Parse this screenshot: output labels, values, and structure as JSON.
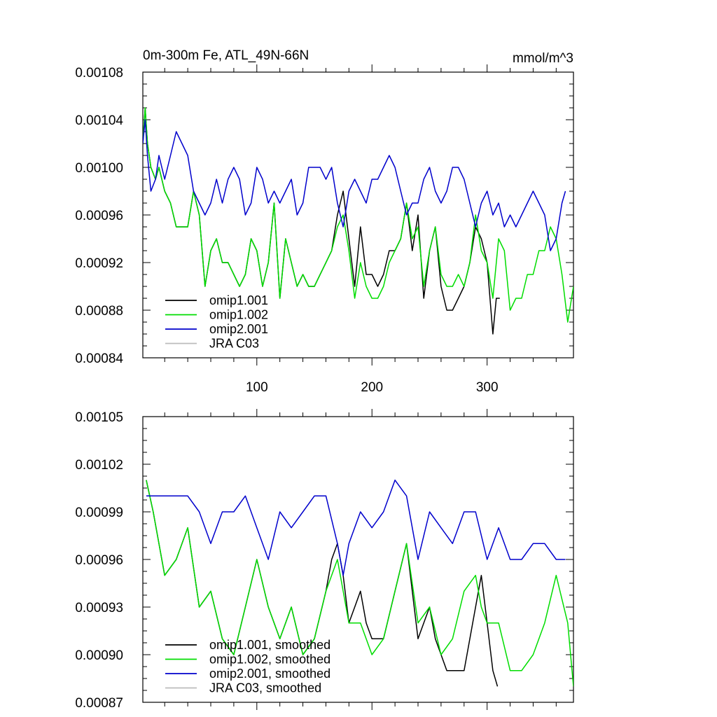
{
  "chart_data": [
    {
      "type": "line",
      "title": "0m-300m Fe, ATL_49N-66N",
      "units": "mmol/m^3",
      "xlabel": "",
      "ylabel": "",
      "xlim": [
        1,
        375
      ],
      "ylim": [
        0.00084,
        0.00108
      ],
      "x_ticks": [
        100,
        200,
        300
      ],
      "x_tick_labels": [
        "100",
        "200",
        "300"
      ],
      "y_ticks": [
        0.00084,
        0.00088,
        0.00092,
        0.00096,
        0.001,
        0.00104,
        0.00108
      ],
      "y_tick_labels": [
        "0.00084",
        "0.00088",
        "0.00092",
        "0.00096",
        "0.00100",
        "0.00104",
        "0.00108"
      ],
      "legend_position": "bottom-left",
      "series": [
        {
          "name": "omip1.001",
          "color": "#000000",
          "x": [
            1,
            3,
            5,
            8,
            12,
            15,
            20,
            25,
            30,
            35,
            40,
            45,
            50,
            55,
            60,
            65,
            70,
            75,
            80,
            85,
            90,
            95,
            100,
            105,
            110,
            115,
            120,
            125,
            130,
            135,
            140,
            145,
            150,
            155,
            160,
            165,
            170,
            175,
            180,
            185,
            190,
            195,
            200,
            205,
            210,
            215,
            220,
            225,
            230,
            235,
            240,
            245,
            250,
            255,
            260,
            265,
            270,
            275,
            280,
            285,
            290,
            295,
            300,
            305,
            308,
            311
          ],
          "y": [
            0.00102,
            0.00105,
            0.00102,
            0.001,
            0.00099,
            0.001,
            0.00098,
            0.00097,
            0.00095,
            0.00095,
            0.00095,
            0.00098,
            0.00096,
            0.0009,
            0.00093,
            0.00094,
            0.00092,
            0.00092,
            0.00091,
            0.0009,
            0.00091,
            0.00094,
            0.00093,
            0.0009,
            0.00092,
            0.00097,
            0.00089,
            0.00094,
            0.00092,
            0.0009,
            0.00091,
            0.0009,
            0.0009,
            0.00091,
            0.00092,
            0.00093,
            0.00096,
            0.00098,
            0.00094,
            0.0009,
            0.00095,
            0.00091,
            0.00091,
            0.0009,
            0.00091,
            0.00093,
            0.00093,
            0.00094,
            0.00097,
            0.00093,
            0.00096,
            0.00089,
            0.00093,
            0.00095,
            0.0009,
            0.00088,
            0.00088,
            0.00089,
            0.0009,
            0.00092,
            0.00095,
            0.00094,
            0.00092,
            0.00086,
            0.00089,
            0.00089
          ]
        },
        {
          "name": "omip1.002",
          "color": "#00dd00",
          "x": [
            1,
            3,
            5,
            8,
            12,
            15,
            20,
            25,
            30,
            35,
            40,
            45,
            50,
            55,
            60,
            65,
            70,
            75,
            80,
            85,
            90,
            95,
            100,
            105,
            110,
            115,
            120,
            125,
            130,
            135,
            140,
            145,
            150,
            155,
            160,
            165,
            170,
            175,
            180,
            185,
            190,
            195,
            200,
            205,
            210,
            215,
            220,
            225,
            230,
            235,
            240,
            245,
            250,
            255,
            260,
            265,
            270,
            275,
            280,
            285,
            290,
            295,
            300,
            305,
            310,
            315,
            320,
            325,
            330,
            335,
            340,
            345,
            350,
            355,
            360,
            365,
            370,
            375
          ],
          "y": [
            0.00102,
            0.00105,
            0.00102,
            0.001,
            0.00099,
            0.001,
            0.00098,
            0.00097,
            0.00095,
            0.00095,
            0.00095,
            0.00098,
            0.00096,
            0.0009,
            0.00093,
            0.00094,
            0.00092,
            0.00092,
            0.00091,
            0.0009,
            0.00091,
            0.00094,
            0.00093,
            0.0009,
            0.00092,
            0.00097,
            0.00089,
            0.00094,
            0.00092,
            0.0009,
            0.00091,
            0.0009,
            0.0009,
            0.00091,
            0.00092,
            0.00093,
            0.00095,
            0.00096,
            0.00093,
            0.00089,
            0.00092,
            0.0009,
            0.00089,
            0.00089,
            0.0009,
            0.00092,
            0.00093,
            0.00094,
            0.00097,
            0.00094,
            0.00095,
            0.0009,
            0.00093,
            0.00095,
            0.00091,
            0.0009,
            0.0009,
            0.00091,
            0.0009,
            0.00092,
            0.00096,
            0.00093,
            0.00092,
            0.00089,
            0.00094,
            0.00093,
            0.00088,
            0.00089,
            0.00089,
            0.00091,
            0.00091,
            0.00093,
            0.00093,
            0.00095,
            0.00094,
            0.00091,
            0.00087,
            0.0009
          ]
        },
        {
          "name": "omip2.001",
          "color": "#0000cc",
          "x": [
            1,
            3,
            5,
            8,
            12,
            15,
            20,
            25,
            30,
            35,
            40,
            45,
            50,
            55,
            60,
            65,
            70,
            75,
            80,
            85,
            90,
            95,
            100,
            105,
            110,
            115,
            120,
            125,
            130,
            135,
            140,
            145,
            150,
            155,
            160,
            165,
            170,
            175,
            180,
            185,
            190,
            195,
            200,
            205,
            210,
            215,
            220,
            225,
            230,
            235,
            240,
            245,
            250,
            255,
            260,
            265,
            270,
            275,
            280,
            285,
            290,
            295,
            300,
            305,
            310,
            315,
            320,
            325,
            330,
            335,
            340,
            345,
            350,
            355,
            360,
            365,
            368
          ],
          "y": [
            0.00102,
            0.00104,
            0.00101,
            0.00098,
            0.00099,
            0.00101,
            0.00099,
            0.00101,
            0.00103,
            0.00102,
            0.00101,
            0.00098,
            0.00097,
            0.00096,
            0.00097,
            0.00099,
            0.00097,
            0.00099,
            0.001,
            0.00099,
            0.00096,
            0.00097,
            0.001,
            0.00099,
            0.00097,
            0.00098,
            0.00097,
            0.00098,
            0.00099,
            0.00096,
            0.00097,
            0.001,
            0.001,
            0.001,
            0.00099,
            0.001,
            0.00097,
            0.00095,
            0.00098,
            0.00099,
            0.00098,
            0.00097,
            0.00099,
            0.00099,
            0.001,
            0.00101,
            0.001,
            0.00098,
            0.00096,
            0.00097,
            0.00097,
            0.00099,
            0.001,
            0.00098,
            0.00097,
            0.00098,
            0.001,
            0.001,
            0.00099,
            0.00097,
            0.00095,
            0.00097,
            0.00098,
            0.00096,
            0.00097,
            0.00095,
            0.00096,
            0.00095,
            0.00096,
            0.00097,
            0.00098,
            0.00097,
            0.00096,
            0.00093,
            0.00094,
            0.00097,
            0.00098
          ]
        },
        {
          "name": "JRA C03",
          "color": "#bbbbbb",
          "x": [],
          "y": []
        }
      ]
    },
    {
      "type": "line",
      "title": "",
      "xlabel": "",
      "ylabel": "",
      "xlim": [
        1,
        375
      ],
      "ylim": [
        0.00087,
        0.00105
      ],
      "x_ticks": [
        100,
        200,
        300
      ],
      "x_tick_labels": [],
      "y_ticks": [
        0.00087,
        0.0009,
        0.00093,
        0.00096,
        0.00099,
        0.00102,
        0.00105
      ],
      "y_tick_labels": [
        "0.00087",
        "0.00090",
        "0.00093",
        "0.00096",
        "0.00099",
        "0.00102",
        "0.00105"
      ],
      "legend_position": "bottom-left",
      "series": [
        {
          "name": "omip1.001, smoothed",
          "color": "#000000",
          "x": [
            4,
            10,
            20,
            30,
            40,
            50,
            60,
            70,
            80,
            90,
            100,
            110,
            120,
            130,
            140,
            150,
            160,
            165,
            170,
            175,
            180,
            185,
            190,
            195,
            200,
            210,
            220,
            230,
            240,
            245,
            250,
            255,
            260,
            265,
            270,
            280,
            290,
            295,
            300,
            305,
            309
          ],
          "y": [
            0.00101,
            0.00099,
            0.00095,
            0.00096,
            0.00098,
            0.00093,
            0.00094,
            0.00091,
            0.0009,
            0.00093,
            0.00096,
            0.00093,
            0.00091,
            0.00093,
            0.0009,
            0.00091,
            0.00094,
            0.00096,
            0.00097,
            0.00095,
            0.00092,
            0.00093,
            0.00094,
            0.00092,
            0.00091,
            0.00091,
            0.00094,
            0.00097,
            0.00091,
            0.00092,
            0.00093,
            0.00091,
            0.0009,
            0.00089,
            0.00089,
            0.00089,
            0.00093,
            0.00095,
            0.00092,
            0.00089,
            0.00088
          ]
        },
        {
          "name": "omip1.002, smoothed",
          "color": "#00dd00",
          "x": [
            4,
            10,
            20,
            30,
            40,
            50,
            60,
            70,
            80,
            90,
            100,
            110,
            120,
            130,
            140,
            150,
            160,
            170,
            175,
            180,
            190,
            200,
            210,
            220,
            230,
            240,
            250,
            260,
            270,
            280,
            290,
            295,
            300,
            310,
            320,
            330,
            340,
            350,
            360,
            370,
            375
          ],
          "y": [
            0.00101,
            0.00099,
            0.00095,
            0.00096,
            0.00098,
            0.00093,
            0.00094,
            0.00091,
            0.0009,
            0.00093,
            0.00096,
            0.00093,
            0.00091,
            0.00093,
            0.0009,
            0.00091,
            0.00094,
            0.00096,
            0.00094,
            0.00092,
            0.00092,
            0.0009,
            0.00091,
            0.00094,
            0.00097,
            0.00092,
            0.00093,
            0.0009,
            0.00091,
            0.00094,
            0.00095,
            0.00093,
            0.00092,
            0.00092,
            0.00089,
            0.00089,
            0.0009,
            0.00092,
            0.00095,
            0.00092,
            0.00088
          ]
        },
        {
          "name": "omip2.001, smoothed",
          "color": "#0000cc",
          "x": [
            4,
            10,
            20,
            30,
            40,
            50,
            60,
            70,
            80,
            90,
            100,
            110,
            120,
            130,
            140,
            150,
            160,
            170,
            175,
            180,
            190,
            200,
            210,
            220,
            230,
            240,
            250,
            260,
            270,
            280,
            290,
            300,
            310,
            320,
            330,
            340,
            350,
            360,
            368
          ],
          "y": [
            0.001,
            0.001,
            0.001,
            0.001,
            0.001,
            0.00099,
            0.00097,
            0.00099,
            0.00099,
            0.001,
            0.00098,
            0.00096,
            0.00099,
            0.00098,
            0.00099,
            0.001,
            0.001,
            0.00097,
            0.00095,
            0.00097,
            0.00099,
            0.00098,
            0.00099,
            0.00101,
            0.001,
            0.00096,
            0.00099,
            0.00098,
            0.00097,
            0.00099,
            0.00099,
            0.00096,
            0.00098,
            0.00096,
            0.00096,
            0.00097,
            0.00097,
            0.00096,
            0.00096
          ]
        },
        {
          "name": "JRA C03, smoothed",
          "color": "#bbbbbb",
          "x": [],
          "y": []
        }
      ]
    }
  ]
}
